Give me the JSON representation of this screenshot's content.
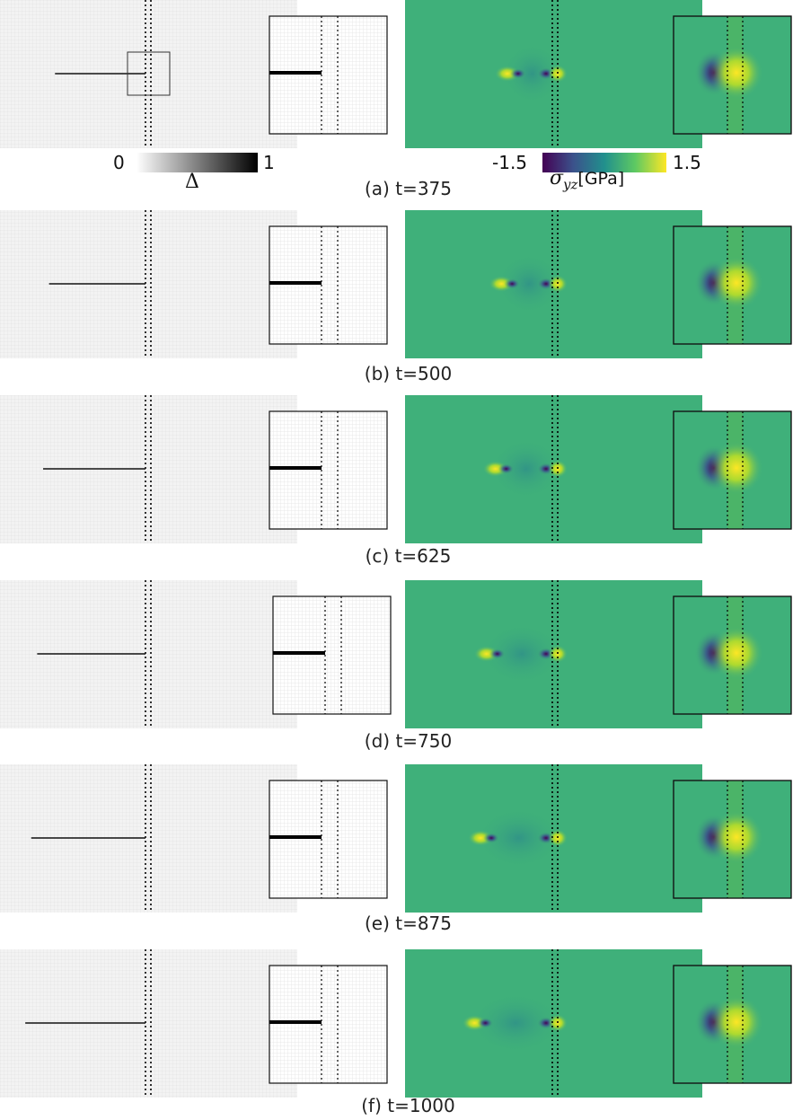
{
  "figure": {
    "panels": [
      {
        "caption": "(a) t=375",
        "crack_left_fraction": 0.185,
        "tip_left": 0.19,
        "tip_right": 0.5
      },
      {
        "caption": "(b) t=500",
        "crack_left_fraction": 0.165,
        "tip_left": 0.17,
        "tip_right": 0.5
      },
      {
        "caption": "(c) t=625",
        "crack_left_fraction": 0.145,
        "tip_left": 0.15,
        "tip_right": 0.5
      },
      {
        "caption": "(d) t=750",
        "crack_left_fraction": 0.125,
        "tip_left": 0.12,
        "tip_right": 0.5
      },
      {
        "caption": "(e) t=875",
        "crack_left_fraction": 0.105,
        "tip_left": 0.1,
        "tip_right": 0.5
      },
      {
        "caption": "(f) t=1000",
        "crack_left_fraction": 0.085,
        "tip_left": 0.08,
        "tip_right": 0.5
      }
    ],
    "damage_colorbar": {
      "min_label": "0",
      "max_label": "1",
      "label": "Δ"
    },
    "stress_colorbar": {
      "min_label": "-1.5",
      "max_label": "1.5",
      "label_symbol": "σ",
      "label_subscript": "yz",
      "label_unit": "[GPa]"
    },
    "colors": {
      "field_bg": "#3fb07a",
      "damage_bg": "#efefef",
      "high": "#fde725",
      "low": "#440154",
      "mid": "#21908d"
    }
  }
}
